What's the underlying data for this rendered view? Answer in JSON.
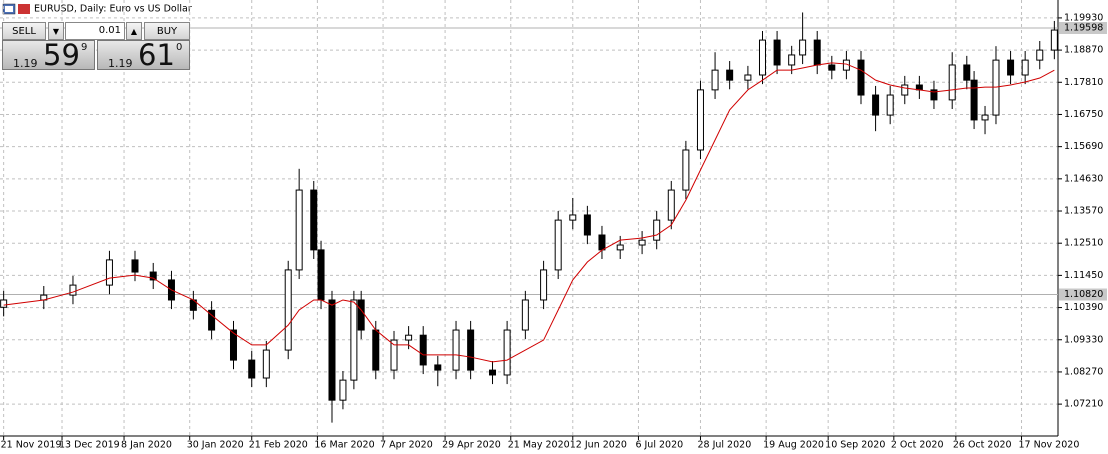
{
  "chart_data": {
    "type": "candlestick",
    "title": "EURUSD, Daily:  Euro vs US Dollar",
    "trade_panel": {
      "sell": "SELL",
      "lot": "0.01",
      "buy": "BUY",
      "sell_price": [
        "1.19",
        "59",
        "9"
      ],
      "buy_price": [
        "1.19",
        "61",
        "0"
      ]
    },
    "up_color": "#ffffff",
    "down_color": "#000000",
    "ma_color": "#d00000",
    "grid": true,
    "xlim": [
      -1,
      289
    ],
    "ylim": [
      1.0616,
      1.2052
    ],
    "xticks": [
      {
        "value": 0,
        "label": "21 Nov 2019"
      },
      {
        "value": 16,
        "label": "13 Dec 2019"
      },
      {
        "value": 33,
        "label": "8 Jan 2020"
      },
      {
        "value": 51,
        "label": "30 Jan 2020"
      },
      {
        "value": 68,
        "label": "21 Feb 2020"
      },
      {
        "value": 86,
        "label": "16 Mar 2020"
      },
      {
        "value": 104,
        "label": "7 Apr 2020"
      },
      {
        "value": 121,
        "label": "29 Apr 2020"
      },
      {
        "value": 139,
        "label": "21 May 2020"
      },
      {
        "value": 156,
        "label": "12 Jun 2020"
      },
      {
        "value": 174,
        "label": "6 Jul 2020"
      },
      {
        "value": 191,
        "label": "28 Jul 2020"
      },
      {
        "value": 209,
        "label": "19 Aug 2020"
      },
      {
        "value": 226,
        "label": "10 Sep 2020"
      },
      {
        "value": 244,
        "label": "2 Oct 2020"
      },
      {
        "value": 261,
        "label": "26 Oct 2020"
      },
      {
        "value": 279,
        "label": "17 Nov 2020"
      }
    ],
    "yticks": [
      {
        "value": 1.1993,
        "label": "1.19930"
      },
      {
        "value": 1.1887,
        "label": "1.18870"
      },
      {
        "value": 1.1781,
        "label": "1.17810"
      },
      {
        "value": 1.1675,
        "label": "1.16750"
      },
      {
        "value": 1.1569,
        "label": "1.15690"
      },
      {
        "value": 1.1463,
        "label": "1.14630"
      },
      {
        "value": 1.1357,
        "label": "1.13570"
      },
      {
        "value": 1.1251,
        "label": "1.12510"
      },
      {
        "value": 1.1145,
        "label": "1.11450"
      },
      {
        "value": 1.1039,
        "label": "1.10390"
      },
      {
        "value": 1.0933,
        "label": "1.09330"
      },
      {
        "value": 1.0827,
        "label": "1.08270"
      },
      {
        "value": 1.0721,
        "label": "1.07210"
      }
    ],
    "price_lines": [
      {
        "value": 1.19598,
        "label": "1.19598"
      },
      {
        "value": 1.1082,
        "label": "1.10820"
      }
    ],
    "x": [
      0,
      11,
      19,
      29,
      36,
      41,
      46,
      52,
      57,
      63,
      68,
      72,
      78,
      81,
      85,
      87,
      90,
      93,
      96,
      98,
      102,
      107,
      111,
      115,
      119,
      124,
      128,
      134,
      138,
      143,
      148,
      152,
      156,
      160,
      164,
      169,
      175,
      179,
      183,
      187,
      191,
      195,
      199,
      204,
      208,
      212,
      216,
      219,
      223,
      227,
      231,
      235,
      239,
      243,
      247,
      251,
      255,
      260,
      264,
      266,
      269,
      272,
      276,
      280,
      284,
      288
    ],
    "open": [
      1.104,
      1.1064,
      1.108,
      1.1113,
      1.1196,
      1.1156,
      1.113,
      1.1064,
      1.103,
      1.0965,
      1.0866,
      1.0807,
      1.0899,
      1.1163,
      1.1426,
      1.1229,
      1.1064,
      1.0734,
      1.08,
      1.1064,
      1.0965,
      1.0833,
      1.0932,
      1.0948,
      1.085,
      1.0833,
      1.0965,
      1.0833,
      1.0817,
      1.0965,
      1.1064,
      1.1163,
      1.1327,
      1.1344,
      1.1278,
      1.1229,
      1.1245,
      1.1261,
      1.1327,
      1.1426,
      1.1558,
      1.1756,
      1.1821,
      1.1788,
      1.1805,
      1.192,
      1.1838,
      1.1871,
      1.192,
      1.1838,
      1.1821,
      1.1854,
      1.1739,
      1.1673,
      1.1739,
      1.1772,
      1.1756,
      1.1723,
      1.1838,
      1.1788,
      1.1657,
      1.1673,
      1.1854,
      1.1805,
      1.1854,
      1.1887
    ],
    "high": [
      1.1094,
      1.111,
      1.1143,
      1.1226,
      1.1226,
      1.1186,
      1.116,
      1.1094,
      1.106,
      1.0995,
      1.0896,
      1.0929,
      1.1193,
      1.1496,
      1.1456,
      1.1259,
      1.1094,
      1.083,
      1.1094,
      1.1094,
      1.0995,
      1.0962,
      1.0978,
      1.0978,
      1.088,
      1.0995,
      1.0995,
      1.0863,
      1.0995,
      1.1094,
      1.1193,
      1.1357,
      1.14,
      1.1374,
      1.1308,
      1.1275,
      1.1291,
      1.1357,
      1.1456,
      1.1588,
      1.1786,
      1.188,
      1.1851,
      1.1835,
      1.195,
      1.195,
      1.1901,
      1.2011,
      1.195,
      1.1868,
      1.1884,
      1.1884,
      1.1769,
      1.1769,
      1.1802,
      1.1802,
      1.1786,
      1.188,
      1.1868,
      1.1818,
      1.1703,
      1.19,
      1.1884,
      1.1884,
      1.1917,
      1.1983
    ],
    "low": [
      1.101,
      1.1034,
      1.105,
      1.1083,
      1.1126,
      1.11,
      1.1034,
      1.1,
      1.0935,
      1.0836,
      1.0777,
      1.0777,
      1.0869,
      1.1133,
      1.1199,
      1.1034,
      1.066,
      1.0704,
      1.077,
      1.0935,
      1.0803,
      1.0803,
      1.0902,
      1.082,
      1.078,
      1.0803,
      1.0803,
      1.0787,
      1.0787,
      1.0935,
      1.1034,
      1.1133,
      1.1297,
      1.1248,
      1.1199,
      1.1199,
      1.1215,
      1.1231,
      1.1297,
      1.1396,
      1.1528,
      1.1726,
      1.1758,
      1.1758,
      1.1775,
      1.1808,
      1.1808,
      1.1841,
      1.1808,
      1.1791,
      1.1791,
      1.1709,
      1.162,
      1.1643,
      1.1709,
      1.1726,
      1.1693,
      1.1693,
      1.1758,
      1.1627,
      1.161,
      1.1643,
      1.1775,
      1.1775,
      1.1824,
      1.1857
    ],
    "close": [
      1.1064,
      1.108,
      1.1113,
      1.1196,
      1.1156,
      1.113,
      1.1064,
      1.103,
      1.0965,
      1.0866,
      1.0807,
      1.0899,
      1.1163,
      1.1426,
      1.1229,
      1.1064,
      1.0734,
      1.08,
      1.1064,
      1.0965,
      1.0833,
      1.0932,
      1.0948,
      1.085,
      1.0833,
      1.0965,
      1.0833,
      1.0817,
      1.0965,
      1.1064,
      1.1163,
      1.1327,
      1.1344,
      1.1278,
      1.1229,
      1.1245,
      1.1261,
      1.1327,
      1.1426,
      1.1558,
      1.1756,
      1.1821,
      1.1788,
      1.1805,
      1.192,
      1.1838,
      1.1871,
      1.192,
      1.1838,
      1.1821,
      1.1854,
      1.1739,
      1.1673,
      1.1739,
      1.1772,
      1.1756,
      1.1723,
      1.1838,
      1.1788,
      1.1657,
      1.1673,
      1.1854,
      1.1805,
      1.1854,
      1.1887,
      1.1953
    ],
    "ma": [
      1.1047,
      1.1064,
      1.109,
      1.1136,
      1.1146,
      1.1136,
      1.1097,
      1.1064,
      1.1014,
      1.0955,
      1.0916,
      1.0916,
      1.0981,
      1.1031,
      1.1064,
      1.1064,
      1.1047,
      1.1064,
      1.1057,
      1.1031,
      1.0965,
      1.0916,
      1.0916,
      1.0883,
      1.0883,
      1.0883,
      1.0876,
      1.086,
      1.0866,
      1.0899,
      1.0932,
      1.1031,
      1.113,
      1.1189,
      1.1228,
      1.1261,
      1.1268,
      1.1278,
      1.1311,
      1.1393,
      1.1492,
      1.1591,
      1.169,
      1.1756,
      1.1788,
      1.1821,
      1.1821,
      1.1828,
      1.1838,
      1.1845,
      1.1841,
      1.1821,
      1.1788,
      1.1772,
      1.1762,
      1.1756,
      1.1749,
      1.1756,
      1.1762,
      1.1762,
      1.1765,
      1.1765,
      1.1772,
      1.1782,
      1.1795,
      1.1821
    ]
  }
}
